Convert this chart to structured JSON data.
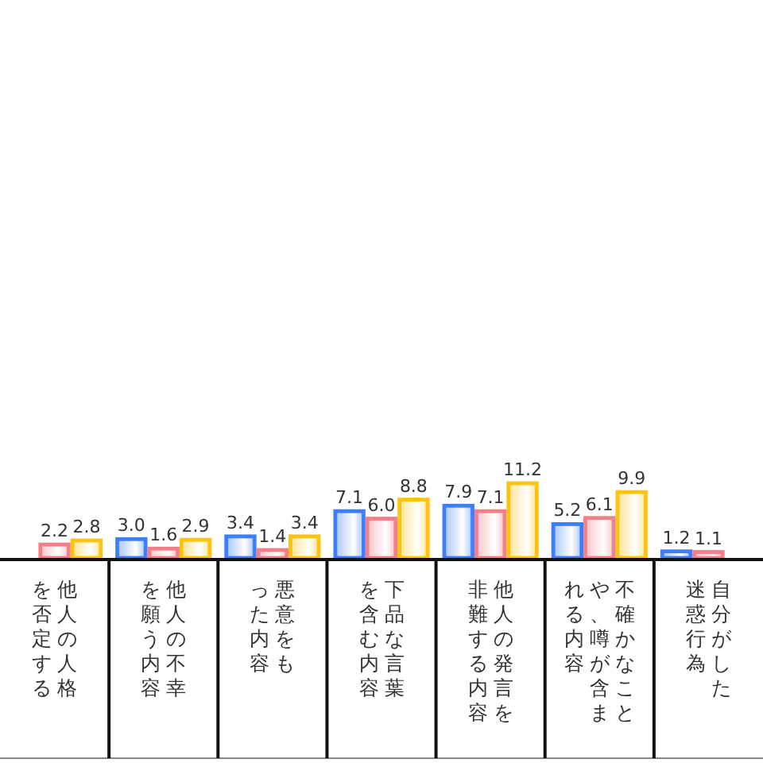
{
  "chart_data": {
    "type": "bar",
    "categories": [
      "他人の人格を否定する",
      "他人の不幸を願う内容",
      "悪意をもった内容",
      "下品な言葉を含む内容",
      "他人の発言を非難する内容",
      "不確かなことや、噂が含まれる内容",
      "自分がした迷惑行為"
    ],
    "series": [
      {
        "color": "#3d7eff",
        "values": [
          null,
          3.0,
          3.4,
          7.1,
          7.9,
          5.2,
          1.2
        ],
        "value_labels": [
          null,
          "3.0",
          "3.4",
          "7.1",
          "7.9",
          "5.2",
          "1.2"
        ]
      },
      {
        "color": "#f47f88",
        "values": [
          2.2,
          1.6,
          1.4,
          6.0,
          7.1,
          6.1,
          1.1
        ],
        "value_labels": [
          "2.2",
          "1.6",
          "1.4",
          "6.0",
          "7.1",
          "6.1",
          "1.1"
        ]
      },
      {
        "color": "#ffc20e",
        "values": [
          2.8,
          2.9,
          3.4,
          8.8,
          11.2,
          9.9,
          null
        ],
        "value_labels": [
          "2.8",
          "2.9",
          "3.4",
          "8.8",
          "11.2",
          "9.9",
          null
        ]
      }
    ]
  }
}
